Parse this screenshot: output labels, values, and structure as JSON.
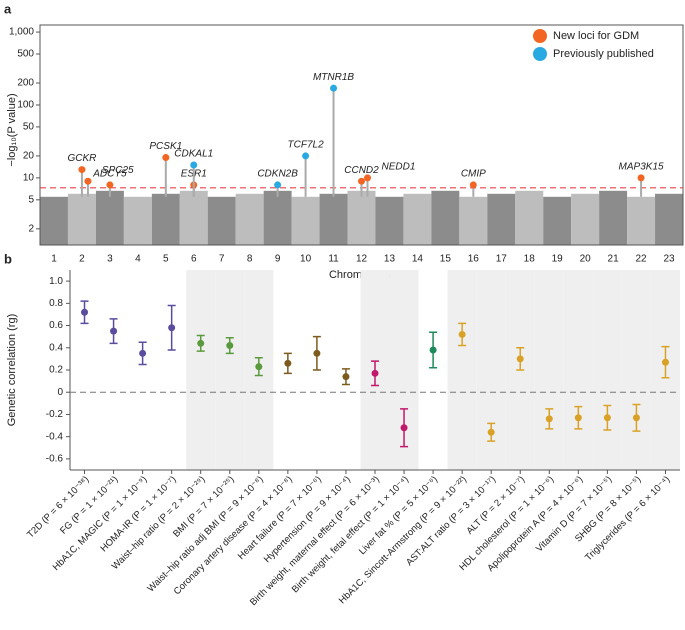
{
  "chart_data": [
    {
      "type": "scatter",
      "panel_label": "a",
      "y_label": "−log₁₀(P value)",
      "x_label": "Chromosome",
      "categories": [
        "1",
        "2",
        "3",
        "4",
        "5",
        "6",
        "7",
        "8",
        "9",
        "10",
        "11",
        "12",
        "13",
        "14",
        "15",
        "16",
        "17",
        "18",
        "19",
        "20",
        "21",
        "22",
        "23"
      ],
      "log_scale": true,
      "ylim": [
        1.2,
        1250
      ],
      "yticks": [
        2,
        5,
        10,
        20,
        50,
        100,
        200,
        500,
        {
          "value": 1000,
          "label": "1,000"
        }
      ],
      "threshold_line": 7.3,
      "legend": "top-right",
      "series": [
        {
          "name": "New loci for GDM",
          "color": "#f26522",
          "x": [
            "2",
            "2",
            "3",
            "5",
            "6",
            "12",
            "12",
            "16",
            "22"
          ],
          "values": [
            13,
            9,
            8,
            19,
            8,
            9,
            10,
            8,
            10
          ],
          "labels": [
            "GCKR",
            "SPC25",
            "ADCY5",
            "PCSK1",
            "ESR1",
            "CCND2",
            "NEDD1",
            "CMIP",
            "MAP3K15"
          ]
        },
        {
          "name": "Previously published",
          "color": "#29a9e1",
          "x": [
            "6",
            "9",
            "10",
            "11"
          ],
          "values": [
            15,
            8,
            20,
            170
          ],
          "labels": [
            "CDKAL1",
            "CDKN2B",
            "TCF7L2",
            "MTNR1B"
          ]
        }
      ]
    },
    {
      "type": "errorbar",
      "panel_label": "b",
      "y_label": "Genetic correlation (rg)",
      "categories": [
        "T2D (P = 6 × 10⁻³⁸)",
        "FG (P = 1 × 10⁻²¹)",
        "HbA1C, MAGIC (P = 1 × 10⁻⁹)",
        "HOMA-IR (P = 1 × 10⁻⁷)",
        "Waist–hip ratio (P = 2 × 10⁻²⁹)",
        "BMI (P = 7 × 10⁻²⁵)",
        "Waist–hip ratio adj BMI (P = 9 × 10⁻⁸)",
        "Coronary artery disease (P = 4 × 10⁻⁸)",
        "Heart failure (P = 7 × 10⁻⁶)",
        "Hypertension (P = 9 × 10⁻⁴)",
        "Birth weight, maternal effect (P = 6 × 10⁻³)",
        "Birth weight, fetal effect (P = 1 × 10⁻⁴)",
        "Liver fat % (P = 5 × 10⁻⁶)",
        "HbA1C, Sincott-Armstrong (P = 9 × 10⁻²²)",
        "AST:ALT ratio (P = 3 × 10⁻¹⁷)",
        "ALT (P = 2 × 10⁻⁷)",
        "HDL cholesterol (P = 1 × 10⁻⁶)",
        "Apolipoprotein A (P = 4 × 10⁻⁶)",
        "Vitamin D (P = 7 × 10⁻⁵)",
        "SHBG (P = 8 × 10⁻⁵)",
        "Triglycerides (P = 6 × 10⁻⁴)"
      ],
      "values": [
        0.72,
        0.55,
        0.35,
        0.58,
        0.44,
        0.42,
        0.23,
        0.26,
        0.35,
        0.14,
        0.17,
        -0.32,
        0.38,
        0.52,
        -0.36,
        0.3,
        -0.24,
        -0.23,
        -0.23,
        -0.23,
        0.27
      ],
      "errors": [
        0.1,
        0.11,
        0.1,
        0.2,
        0.07,
        0.07,
        0.08,
        0.09,
        0.15,
        0.07,
        0.11,
        0.17,
        0.16,
        0.1,
        0.08,
        0.1,
        0.09,
        0.1,
        0.11,
        0.12,
        0.14
      ],
      "colors": [
        "#5b4c9e",
        "#5b4c9e",
        "#5b4c9e",
        "#5b4c9e",
        "#5a9a3c",
        "#5a9a3c",
        "#5a9a3c",
        "#7d5a1e",
        "#7d5a1e",
        "#7d5a1e",
        "#c2186b",
        "#c2186b",
        "#1e8a5c",
        "#d9a227",
        "#d9a227",
        "#d9a227",
        "#d9a227",
        "#d9a227",
        "#d9a227",
        "#d9a227",
        "#d9a227"
      ],
      "ylim": [
        -0.7,
        1.1
      ],
      "yticks": [
        {
          "value": 1,
          "label": "1.0"
        },
        0.8,
        0.6,
        0.4,
        0.2,
        0,
        -0.2,
        -0.4,
        -0.6
      ]
    }
  ]
}
